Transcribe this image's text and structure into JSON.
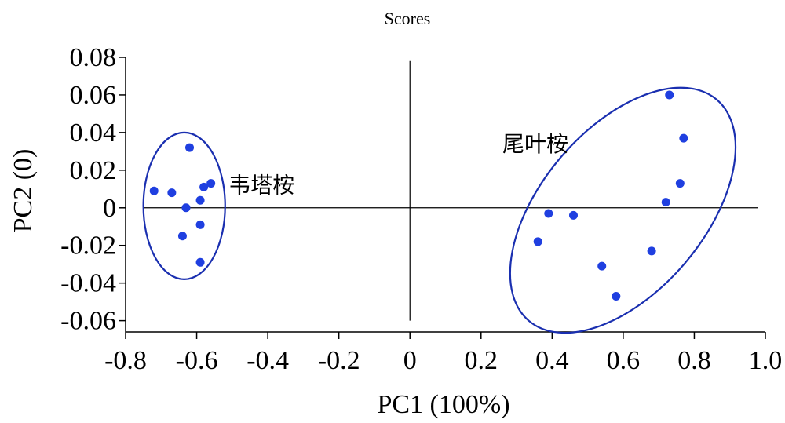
{
  "chart_data": {
    "type": "scatter",
    "title": "Scores",
    "xlabel": "PC1 (100%)",
    "ylabel": "PC2 (0)",
    "xlim": [
      -0.8,
      1.0
    ],
    "ylim": [
      -0.066,
      0.08
    ],
    "x_ticks": [
      "-0.8",
      "-0.6",
      "-0.4",
      "-0.2",
      "0",
      "0.2",
      "0.4",
      "0.6",
      "0.8",
      "1.0"
    ],
    "x_tick_values": [
      -0.8,
      -0.6,
      -0.4,
      -0.2,
      0,
      0.2,
      0.4,
      0.6,
      0.8,
      1.0
    ],
    "y_ticks": [
      "0.08",
      "0.06",
      "0.04",
      "0.02",
      "0",
      "-0.02",
      "-0.04",
      "-0.06"
    ],
    "y_tick_values": [
      0.08,
      0.06,
      0.04,
      0.02,
      0,
      -0.02,
      -0.04,
      -0.06
    ],
    "grid": false,
    "marker_color": "#1f3fe0",
    "ellipse_color": "#1a2fb0",
    "groups": [
      {
        "name": "韦塔桉",
        "points": [
          {
            "x": -0.62,
            "y": 0.032
          },
          {
            "x": -0.56,
            "y": 0.013
          },
          {
            "x": -0.58,
            "y": 0.011
          },
          {
            "x": -0.72,
            "y": 0.009
          },
          {
            "x": -0.67,
            "y": 0.008
          },
          {
            "x": -0.59,
            "y": 0.004
          },
          {
            "x": -0.63,
            "y": 0.0
          },
          {
            "x": -0.59,
            "y": -0.009
          },
          {
            "x": -0.64,
            "y": -0.015
          },
          {
            "x": -0.59,
            "y": -0.029
          }
        ],
        "ellipse": {
          "cx": -0.635,
          "cy": 0.001,
          "rx": 0.115,
          "ry": 0.039,
          "angle": 0
        }
      },
      {
        "name": "尾叶桉",
        "points": [
          {
            "x": 0.73,
            "y": 0.06
          },
          {
            "x": 0.77,
            "y": 0.037
          },
          {
            "x": 0.76,
            "y": 0.013
          },
          {
            "x": 0.72,
            "y": 0.003
          },
          {
            "x": 0.39,
            "y": -0.003
          },
          {
            "x": 0.46,
            "y": -0.004
          },
          {
            "x": 0.36,
            "y": -0.018
          },
          {
            "x": 0.68,
            "y": -0.023
          },
          {
            "x": 0.54,
            "y": -0.031
          },
          {
            "x": 0.58,
            "y": -0.047
          }
        ]
      }
    ]
  }
}
